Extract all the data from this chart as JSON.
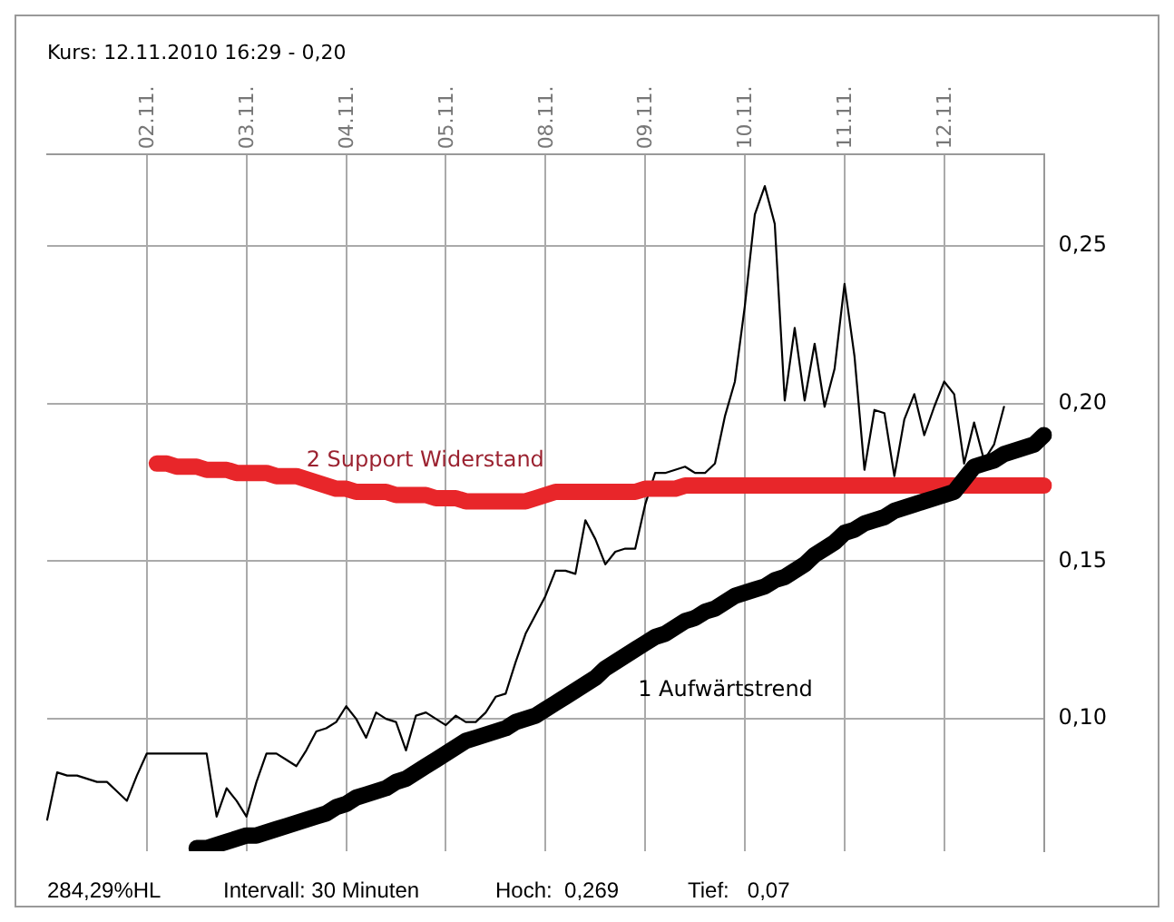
{
  "chart_data": {
    "type": "line",
    "title": "Kurs: 12.11.2010 16:29 - 0,20",
    "categories": [
      null,
      null,
      null,
      null,
      null,
      null,
      null,
      null,
      null,
      null,
      "02.11.",
      null,
      null,
      null,
      null,
      null,
      null,
      null,
      null,
      null,
      "03.11.",
      null,
      null,
      null,
      null,
      null,
      null,
      null,
      null,
      null,
      "04.11.",
      null,
      null,
      null,
      null,
      null,
      null,
      null,
      null,
      null,
      "05.11.",
      null,
      null,
      null,
      null,
      null,
      null,
      null,
      null,
      null,
      "08.11.",
      null,
      null,
      null,
      null,
      null,
      null,
      null,
      null,
      null,
      "09.11.",
      null,
      null,
      null,
      null,
      null,
      null,
      null,
      null,
      null,
      "10.11.",
      null,
      null,
      null,
      null,
      null,
      null,
      null,
      null,
      null,
      "11.11.",
      null,
      null,
      null,
      null,
      null,
      null,
      null,
      null,
      null,
      "12.11.",
      null,
      null,
      null,
      null,
      null,
      null,
      null,
      null,
      null,
      null
    ],
    "ylim": [
      0.058,
      0.279
    ],
    "yticks": [
      {
        "value": 0.1,
        "label": "0,10"
      },
      {
        "value": 0.15,
        "label": "0,15"
      },
      {
        "value": 0.2,
        "label": "0,20"
      },
      {
        "value": 0.25,
        "label": "0,25"
      }
    ],
    "grid": true,
    "legend": false,
    "series": [
      {
        "color": "#000000",
        "values": [
          0.068,
          0.083,
          0.082,
          0.082,
          0.081,
          0.08,
          0.08,
          0.077,
          0.074,
          0.082,
          0.089,
          0.089,
          0.089,
          0.089,
          0.089,
          0.089,
          0.089,
          0.069,
          0.078,
          0.074,
          0.069,
          0.08,
          0.089,
          0.089,
          0.087,
          0.085,
          0.09,
          0.096,
          0.097,
          0.099,
          0.104,
          0.1,
          0.094,
          0.102,
          0.1,
          0.099,
          0.09,
          0.101,
          0.102,
          0.1,
          0.098,
          0.101,
          0.099,
          0.099,
          0.102,
          0.107,
          0.108,
          0.118,
          0.127,
          0.133,
          0.139,
          0.147,
          0.147,
          0.146,
          0.163,
          0.157,
          0.149,
          0.153,
          0.154,
          0.154,
          0.168,
          0.178,
          0.178,
          0.179,
          0.18,
          0.178,
          0.178,
          0.181,
          0.196,
          0.207,
          0.231,
          0.26,
          0.269,
          0.257,
          0.201,
          0.224,
          0.201,
          0.219,
          0.199,
          0.211,
          0.238,
          0.215,
          0.179,
          0.198,
          0.197,
          0.177,
          0.195,
          0.203,
          0.19,
          0.199,
          0.207,
          0.203,
          0.181,
          0.194,
          0.182,
          0.187,
          0.199,
          null,
          null,
          null,
          null
        ]
      },
      {
        "name": "1 Aufwärtstrend",
        "color": "#000000",
        "values": [
          null,
          null,
          null,
          null,
          null,
          null,
          null,
          null,
          null,
          null,
          null,
          null,
          null,
          null,
          null,
          0.059,
          0.059,
          0.06,
          0.061,
          0.062,
          0.063,
          0.063,
          0.064,
          0.065,
          0.066,
          0.067,
          0.068,
          0.069,
          0.07,
          0.072,
          0.073,
          0.075,
          0.076,
          0.077,
          0.078,
          0.08,
          0.081,
          0.083,
          0.085,
          0.087,
          0.089,
          0.091,
          0.093,
          0.094,
          0.095,
          0.096,
          0.097,
          0.099,
          0.1,
          0.101,
          0.103,
          0.105,
          0.107,
          0.109,
          0.111,
          0.113,
          0.116,
          0.118,
          0.12,
          0.122,
          0.124,
          0.126,
          0.127,
          0.129,
          0.131,
          0.132,
          0.134,
          0.135,
          0.137,
          0.139,
          0.14,
          0.141,
          0.142,
          0.144,
          0.145,
          0.147,
          0.149,
          0.152,
          0.154,
          0.156,
          0.159,
          0.16,
          0.162,
          0.163,
          0.164,
          0.166,
          0.167,
          0.168,
          0.169,
          0.17,
          0.171,
          0.172,
          0.176,
          0.18,
          0.181,
          0.182,
          0.184,
          0.185,
          0.186,
          0.187,
          0.19
        ]
      },
      {
        "name": "2 Support Widerstand",
        "color": "#e8262a",
        "values": [
          null,
          null,
          null,
          null,
          null,
          null,
          null,
          null,
          null,
          null,
          null,
          0.181,
          0.181,
          0.18,
          0.18,
          0.18,
          0.179,
          0.179,
          0.179,
          0.178,
          0.178,
          0.178,
          0.178,
          0.177,
          0.177,
          0.177,
          0.176,
          0.175,
          0.174,
          0.173,
          0.173,
          0.172,
          0.172,
          0.172,
          0.172,
          0.171,
          0.171,
          0.171,
          0.171,
          0.17,
          0.17,
          0.17,
          0.169,
          0.169,
          0.169,
          0.169,
          0.169,
          0.169,
          0.169,
          0.17,
          0.171,
          0.172,
          0.172,
          0.172,
          0.172,
          0.172,
          0.172,
          0.172,
          0.172,
          0.172,
          0.173,
          0.173,
          0.173,
          0.173,
          0.174,
          0.174,
          0.174,
          0.174,
          0.174,
          0.174,
          0.174,
          0.174,
          0.174,
          0.174,
          0.174,
          0.174,
          0.174,
          0.174,
          0.174,
          0.174,
          0.174,
          0.174,
          0.174,
          0.174,
          0.174,
          0.174,
          0.174,
          0.174,
          0.174,
          0.174,
          0.174,
          0.174,
          0.174,
          0.174,
          0.174,
          0.174,
          0.174,
          0.174,
          0.174,
          0.174,
          0.174
        ]
      }
    ],
    "annotations": [
      "284,29%HL",
      "Intervall: 30 Minuten",
      "Hoch:  0,269",
      "Tief:   0,07"
    ]
  }
}
